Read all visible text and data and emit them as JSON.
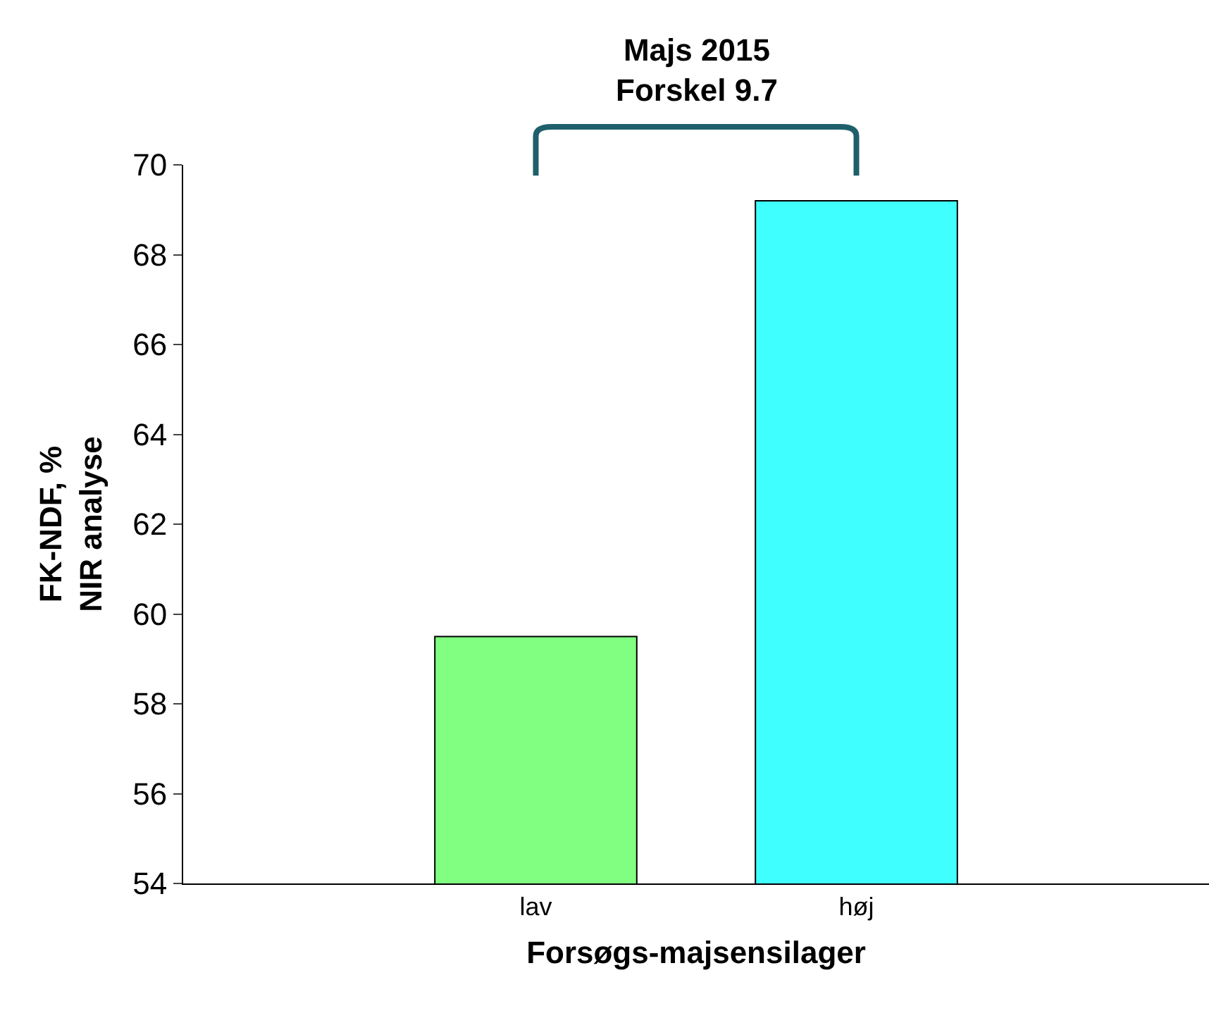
{
  "chart_data": {
    "type": "bar",
    "categories": [
      "lav",
      "høj"
    ],
    "values": [
      59.5,
      69.2
    ],
    "colors": [
      "#80ff80",
      "#40ffff"
    ],
    "xlabel": "Forsøgs-majsensilager",
    "ylabel": "FK-NDF, %\nNIR analyse",
    "ylim": [
      54,
      70
    ],
    "yticks": [
      54,
      56,
      58,
      60,
      62,
      64,
      66,
      68,
      70
    ],
    "legend": false,
    "annotations": [
      "Majs 2015\nForskel 9.7"
    ]
  }
}
